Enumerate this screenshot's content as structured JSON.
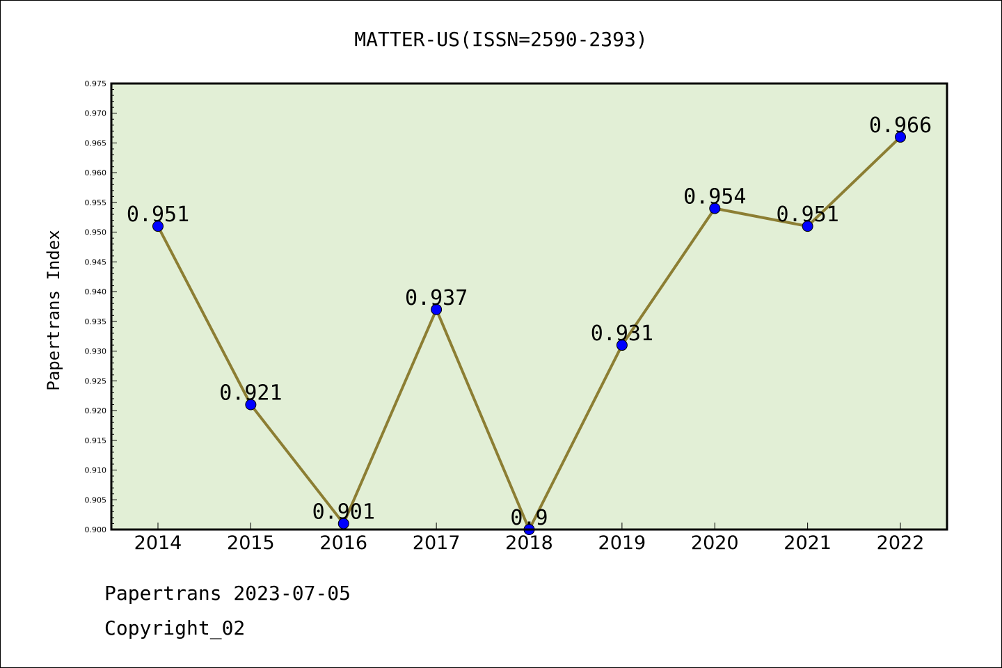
{
  "chart_data": {
    "type": "line",
    "title": "MATTER-US(ISSN=2590-2393)",
    "xlabel": "",
    "ylabel": "Papertrans Index",
    "categories": [
      "2014",
      "2015",
      "2016",
      "2017",
      "2018",
      "2019",
      "2020",
      "2021",
      "2022"
    ],
    "series": [
      {
        "values": [
          0.951,
          0.921,
          0.901,
          0.937,
          0.9,
          0.931,
          0.954,
          0.951,
          0.966
        ],
        "labels": [
          "0.951",
          "0.921",
          "0.901",
          "0.937",
          "0.9",
          "0.931",
          "0.954",
          "0.951",
          "0.966"
        ]
      }
    ],
    "ylim": [
      0.9,
      0.975
    ],
    "yticks": [
      "0.900",
      "0.905",
      "0.910",
      "0.915",
      "0.920",
      "0.925",
      "0.930",
      "0.935",
      "0.940",
      "0.945",
      "0.950",
      "0.955",
      "0.960",
      "0.965",
      "0.970",
      "0.975"
    ],
    "grid": false,
    "colors": {
      "plot_background": "#e2efd6",
      "line": "#8c7e33",
      "marker": "#0000ff",
      "axis": "#000000"
    }
  },
  "footer": {
    "line1": "Papertrans 2023-07-05",
    "line2": "Copyright_02"
  }
}
